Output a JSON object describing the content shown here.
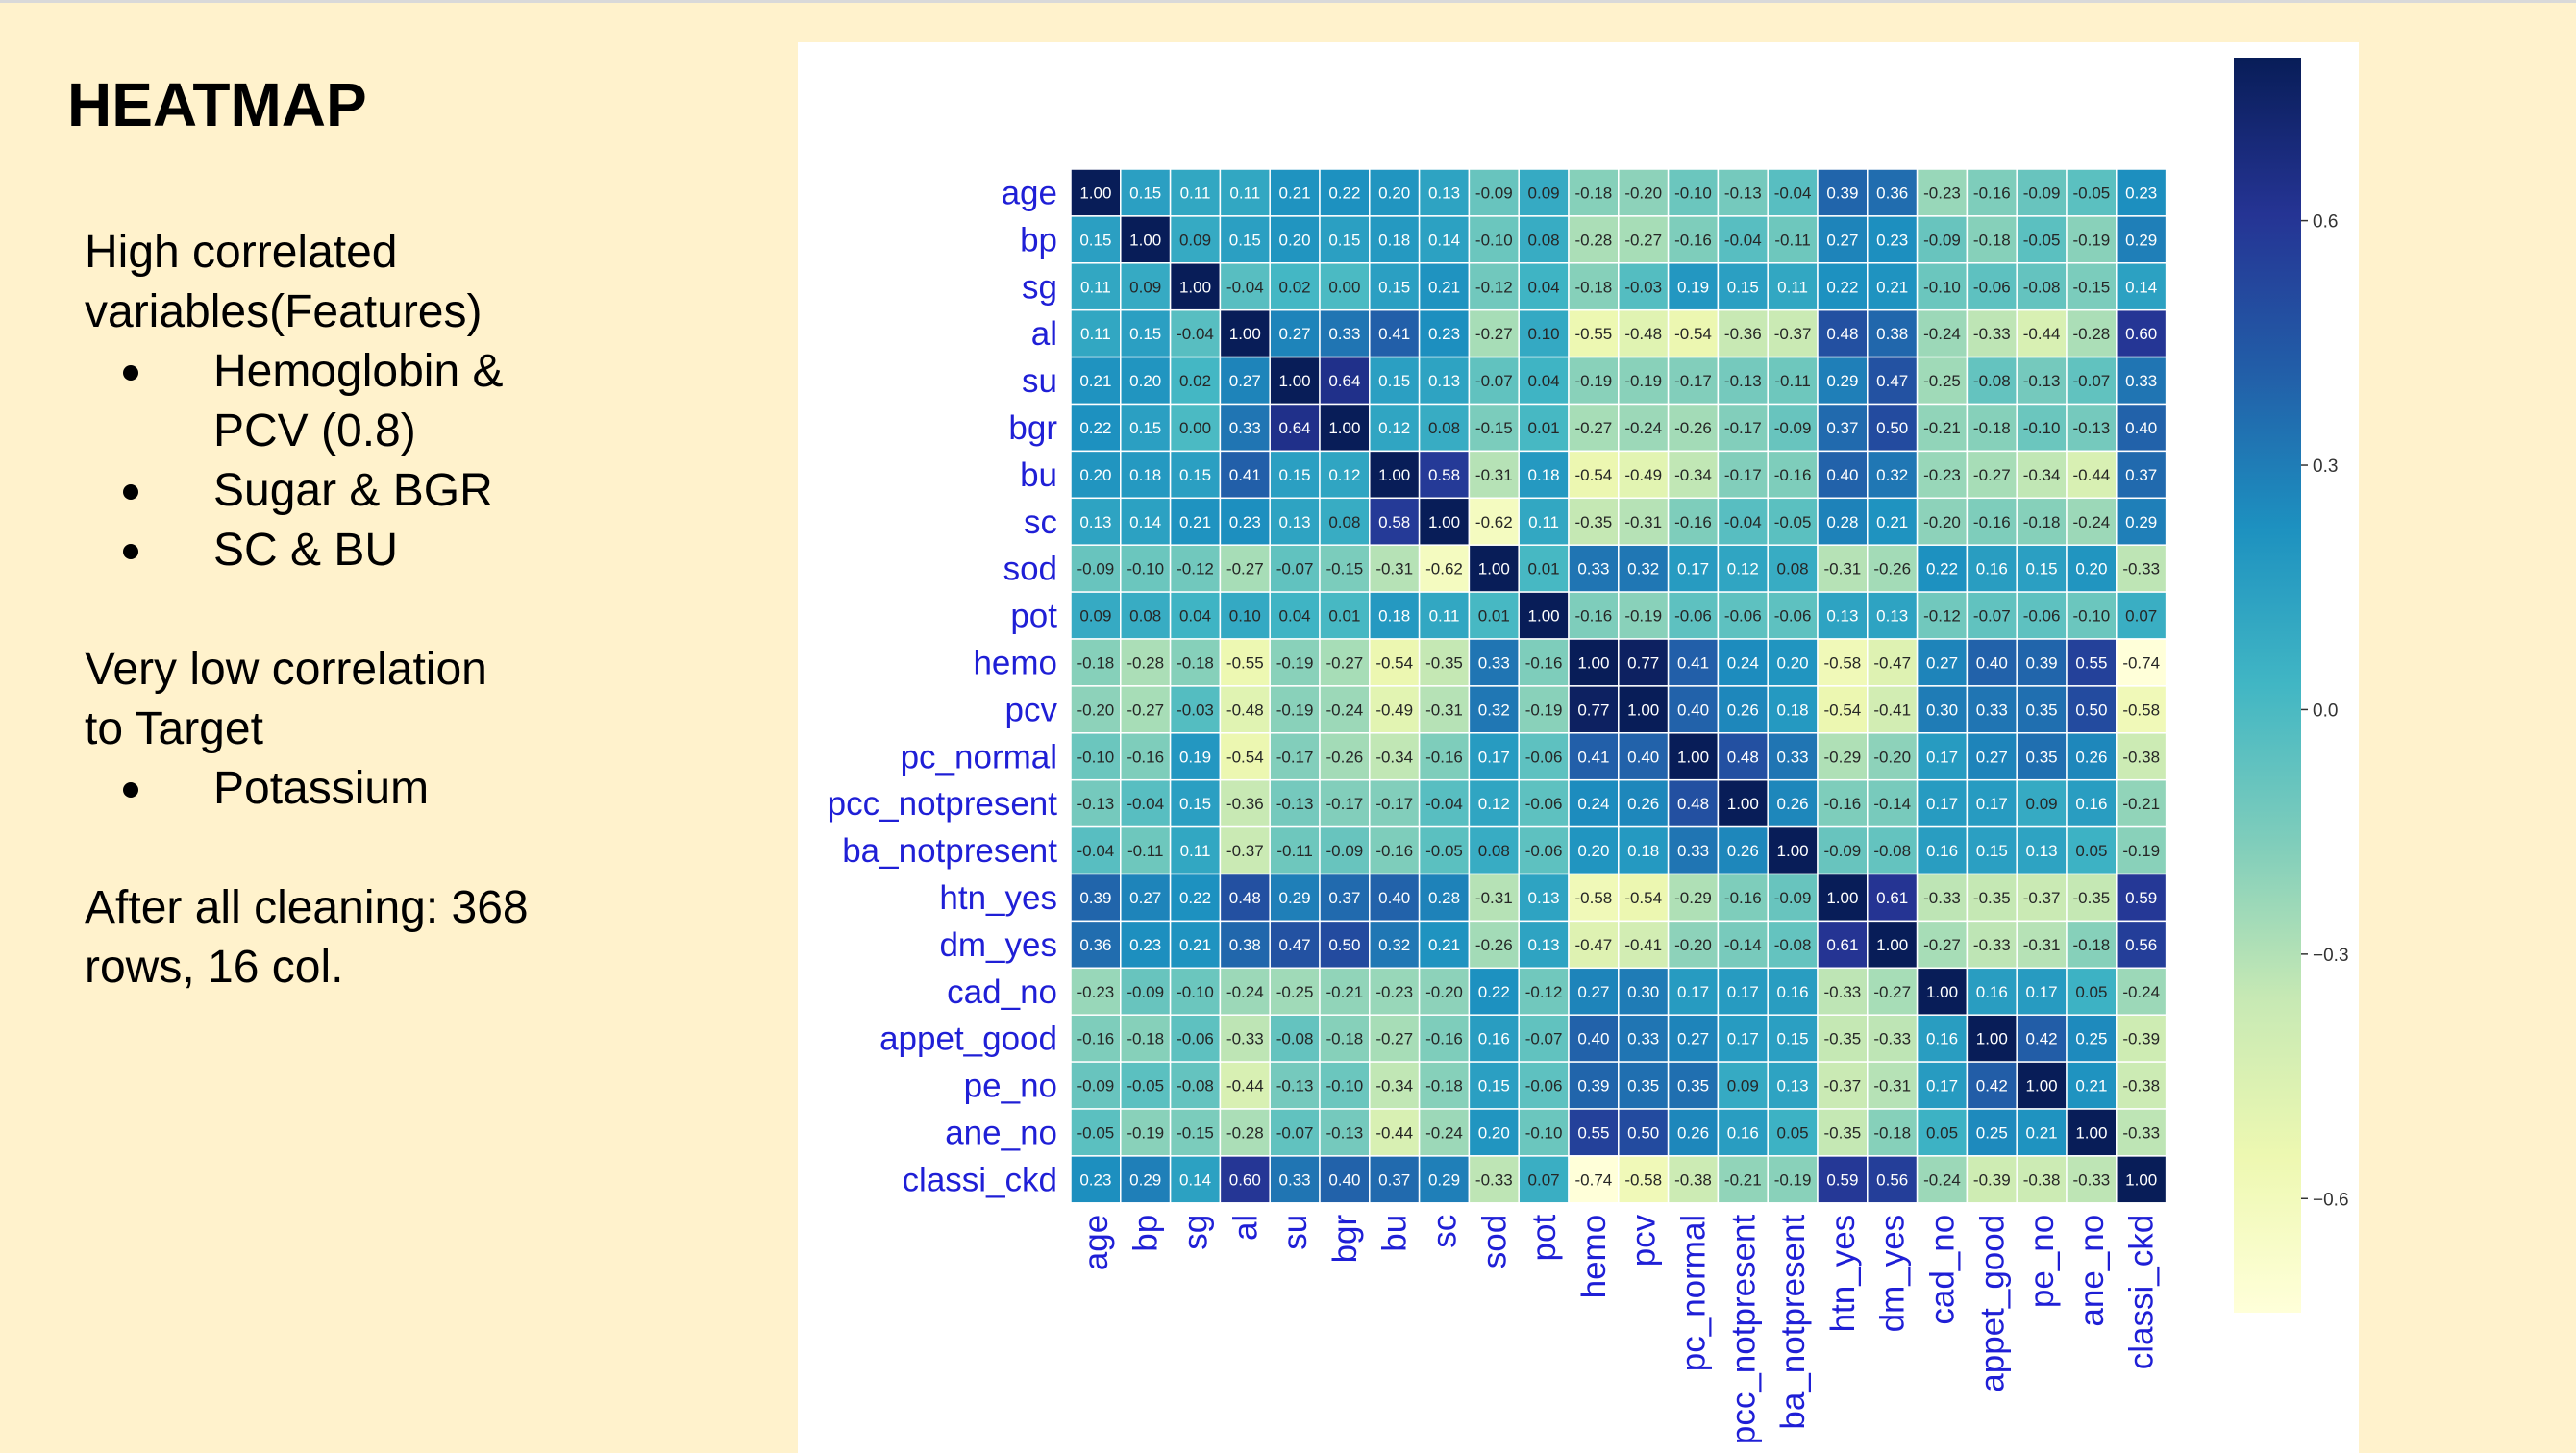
{
  "slide": {
    "title": "HEATMAP",
    "intro_line1": "High correlated",
    "intro_line2": "variables(Features)",
    "high_pairs": [
      "Hemoglobin &",
      "PCV (0.8)",
      "Sugar & BGR",
      "SC & BU"
    ],
    "low_line1": "Very low correlation",
    "low_line2": "to Target",
    "low_items": [
      "Potassium"
    ],
    "cleaning_line1": "After all cleaning: 368",
    "cleaning_line2": "rows, 16 col."
  },
  "colors": {
    "background": "#fff2cc",
    "label_text": "#1f1fd6",
    "colormap": "YlGnBu"
  },
  "chart_data": {
    "type": "heatmap",
    "title": "",
    "labels": [
      "age",
      "bp",
      "sg",
      "al",
      "su",
      "bgr",
      "bu",
      "sc",
      "sod",
      "pot",
      "hemo",
      "pcv",
      "pc_normal",
      "pcc_notpresent",
      "ba_notpresent",
      "htn_yes",
      "dm_yes",
      "cad_no",
      "appet_good",
      "pe_no",
      "ane_no",
      "classi_ckd"
    ],
    "values": [
      [
        1.0,
        0.15,
        0.11,
        0.11,
        0.21,
        0.22,
        0.2,
        0.13,
        -0.09,
        0.09,
        -0.18,
        -0.2,
        -0.1,
        -0.13,
        -0.04,
        0.39,
        0.36,
        -0.23,
        -0.16,
        -0.09,
        -0.05,
        0.23
      ],
      [
        0.15,
        1.0,
        0.09,
        0.15,
        0.2,
        0.15,
        0.18,
        0.14,
        -0.1,
        0.08,
        -0.28,
        -0.27,
        -0.16,
        -0.04,
        -0.11,
        0.27,
        0.23,
        -0.09,
        -0.18,
        -0.05,
        -0.19,
        0.29
      ],
      [
        0.11,
        0.09,
        1.0,
        -0.04,
        0.02,
        0.0,
        0.15,
        0.21,
        -0.12,
        0.04,
        -0.18,
        -0.03,
        0.19,
        0.15,
        0.11,
        0.22,
        0.21,
        -0.1,
        -0.06,
        -0.08,
        -0.15,
        0.14
      ],
      [
        0.11,
        0.15,
        -0.04,
        1.0,
        0.27,
        0.33,
        0.41,
        0.23,
        -0.27,
        0.1,
        -0.55,
        -0.48,
        -0.54,
        -0.36,
        -0.37,
        0.48,
        0.38,
        -0.24,
        -0.33,
        -0.44,
        -0.28,
        0.6
      ],
      [
        0.21,
        0.2,
        0.02,
        0.27,
        1.0,
        0.64,
        0.15,
        0.13,
        -0.07,
        0.04,
        -0.19,
        -0.19,
        -0.17,
        -0.13,
        -0.11,
        0.29,
        0.47,
        -0.25,
        -0.08,
        -0.13,
        -0.07,
        0.33
      ],
      [
        0.22,
        0.15,
        0.0,
        0.33,
        0.64,
        1.0,
        0.12,
        0.08,
        -0.15,
        0.01,
        -0.27,
        -0.24,
        -0.26,
        -0.17,
        -0.09,
        0.37,
        0.5,
        -0.21,
        -0.18,
        -0.1,
        -0.13,
        0.4
      ],
      [
        0.2,
        0.18,
        0.15,
        0.41,
        0.15,
        0.12,
        1.0,
        0.58,
        -0.31,
        0.18,
        -0.54,
        -0.49,
        -0.34,
        -0.17,
        -0.16,
        0.4,
        0.32,
        -0.23,
        -0.27,
        -0.34,
        -0.44,
        0.37
      ],
      [
        0.13,
        0.14,
        0.21,
        0.23,
        0.13,
        0.08,
        0.58,
        1.0,
        -0.62,
        0.11,
        -0.35,
        -0.31,
        -0.16,
        -0.04,
        -0.05,
        0.28,
        0.21,
        -0.2,
        -0.16,
        -0.18,
        -0.24,
        0.29
      ],
      [
        -0.09,
        -0.1,
        -0.12,
        -0.27,
        -0.07,
        -0.15,
        -0.31,
        -0.62,
        1.0,
        0.01,
        0.33,
        0.32,
        0.17,
        0.12,
        0.08,
        -0.31,
        -0.26,
        0.22,
        0.16,
        0.15,
        0.2,
        -0.33
      ],
      [
        0.09,
        0.08,
        0.04,
        0.1,
        0.04,
        0.01,
        0.18,
        0.11,
        0.01,
        1.0,
        -0.16,
        -0.19,
        -0.06,
        -0.06,
        -0.06,
        0.13,
        0.13,
        -0.12,
        -0.07,
        -0.06,
        -0.1,
        0.07
      ],
      [
        -0.18,
        -0.28,
        -0.18,
        -0.55,
        -0.19,
        -0.27,
        -0.54,
        -0.35,
        0.33,
        -0.16,
        1.0,
        0.77,
        0.41,
        0.24,
        0.2,
        -0.58,
        -0.47,
        0.27,
        0.4,
        0.39,
        0.55,
        -0.74
      ],
      [
        -0.2,
        -0.27,
        -0.03,
        -0.48,
        -0.19,
        -0.24,
        -0.49,
        -0.31,
        0.32,
        -0.19,
        0.77,
        1.0,
        0.4,
        0.26,
        0.18,
        -0.54,
        -0.41,
        0.3,
        0.33,
        0.35,
        0.5,
        -0.58
      ],
      [
        -0.1,
        -0.16,
        0.19,
        -0.54,
        -0.17,
        -0.26,
        -0.34,
        -0.16,
        0.17,
        -0.06,
        0.41,
        0.4,
        1.0,
        0.48,
        0.33,
        -0.29,
        -0.2,
        0.17,
        0.27,
        0.35,
        0.26,
        -0.38
      ],
      [
        -0.13,
        -0.04,
        0.15,
        -0.36,
        -0.13,
        -0.17,
        -0.17,
        -0.04,
        0.12,
        -0.06,
        0.24,
        0.26,
        0.48,
        1.0,
        0.26,
        -0.16,
        -0.14,
        0.17,
        0.17,
        0.09,
        0.16,
        -0.21
      ],
      [
        -0.04,
        -0.11,
        0.11,
        -0.37,
        -0.11,
        -0.09,
        -0.16,
        -0.05,
        0.08,
        -0.06,
        0.2,
        0.18,
        0.33,
        0.26,
        1.0,
        -0.09,
        -0.08,
        0.16,
        0.15,
        0.13,
        0.05,
        -0.19
      ],
      [
        0.39,
        0.27,
        0.22,
        0.48,
        0.29,
        0.37,
        0.4,
        0.28,
        -0.31,
        0.13,
        -0.58,
        -0.54,
        -0.29,
        -0.16,
        -0.09,
        1.0,
        0.61,
        -0.33,
        -0.35,
        -0.37,
        -0.35,
        0.59
      ],
      [
        0.36,
        0.23,
        0.21,
        0.38,
        0.47,
        0.5,
        0.32,
        0.21,
        -0.26,
        0.13,
        -0.47,
        -0.41,
        -0.2,
        -0.14,
        -0.08,
        0.61,
        1.0,
        -0.27,
        -0.33,
        -0.31,
        -0.18,
        0.56
      ],
      [
        -0.23,
        -0.09,
        -0.1,
        -0.24,
        -0.25,
        -0.21,
        -0.23,
        -0.2,
        0.22,
        -0.12,
        0.27,
        0.3,
        0.17,
        0.17,
        0.16,
        -0.33,
        -0.27,
        1.0,
        0.16,
        0.17,
        0.05,
        -0.24
      ],
      [
        -0.16,
        -0.18,
        -0.06,
        -0.33,
        -0.08,
        -0.18,
        -0.27,
        -0.16,
        0.16,
        -0.07,
        0.4,
        0.33,
        0.27,
        0.17,
        0.15,
        -0.35,
        -0.33,
        0.16,
        1.0,
        0.42,
        0.25,
        -0.39
      ],
      [
        -0.09,
        -0.05,
        -0.08,
        -0.44,
        -0.13,
        -0.1,
        -0.34,
        -0.18,
        0.15,
        -0.06,
        0.39,
        0.35,
        0.35,
        0.09,
        0.13,
        -0.37,
        -0.31,
        0.17,
        0.42,
        1.0,
        0.21,
        -0.38
      ],
      [
        -0.05,
        -0.19,
        -0.15,
        -0.28,
        -0.07,
        -0.13,
        -0.44,
        -0.24,
        0.2,
        -0.1,
        0.55,
        0.5,
        0.26,
        0.16,
        0.05,
        -0.35,
        -0.18,
        0.05,
        0.25,
        0.21,
        1.0,
        -0.33
      ],
      [
        0.23,
        0.29,
        0.14,
        0.6,
        0.33,
        0.4,
        0.37,
        0.29,
        -0.33,
        0.07,
        -0.74,
        -0.58,
        -0.38,
        -0.21,
        -0.19,
        0.59,
        0.56,
        -0.24,
        -0.39,
        -0.38,
        -0.33,
        1.0
      ]
    ],
    "colorbar": {
      "vmin": -0.74,
      "vmax": 0.8,
      "ticks": [
        0.6,
        0.3,
        0.0,
        -0.3,
        -0.6
      ],
      "tick_labels": [
        "0.6",
        "0.3",
        "0.0",
        "−0.3",
        "−0.6"
      ]
    },
    "annotated": true,
    "value_format": "2 decimals"
  }
}
